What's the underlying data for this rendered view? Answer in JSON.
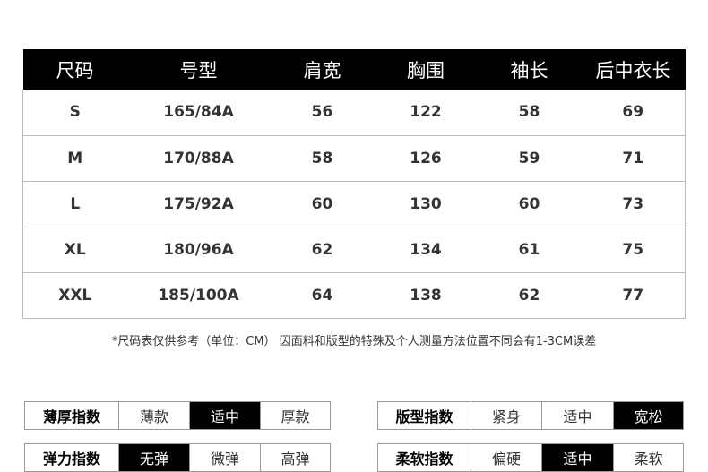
{
  "table": {
    "headers": [
      "尺码",
      "号型",
      "肩宽",
      "胸围",
      "袖长",
      "后中衣长"
    ],
    "rows": [
      [
        "S",
        "165/84A",
        "56",
        "122",
        "58",
        "69"
      ],
      [
        "M",
        "170/88A",
        "58",
        "126",
        "59",
        "71"
      ],
      [
        "L",
        "175/92A",
        "60",
        "130",
        "60",
        "73"
      ],
      [
        "XL",
        "180/96A",
        "62",
        "134",
        "61",
        "75"
      ],
      [
        "XXL",
        "185/100A",
        "64",
        "138",
        "62",
        "77"
      ]
    ]
  },
  "note": "*尺码表仅供参考（单位：CM） 因面料和版型的特殊及个人测量方法位置不同会有1-3CM误差",
  "indices": [
    {
      "label": "薄厚指数",
      "options": [
        "薄款",
        "适中",
        "厚款"
      ],
      "selected": 1
    },
    {
      "label": "版型指数",
      "options": [
        "紧身",
        "适中",
        "宽松"
      ],
      "selected": 2
    },
    {
      "label": "弹力指数",
      "options": [
        "无弹",
        "微弹",
        "高弹"
      ],
      "selected": 0
    },
    {
      "label": "柔软指数",
      "options": [
        "偏硬",
        "适中",
        "柔软"
      ],
      "selected": 1
    }
  ]
}
